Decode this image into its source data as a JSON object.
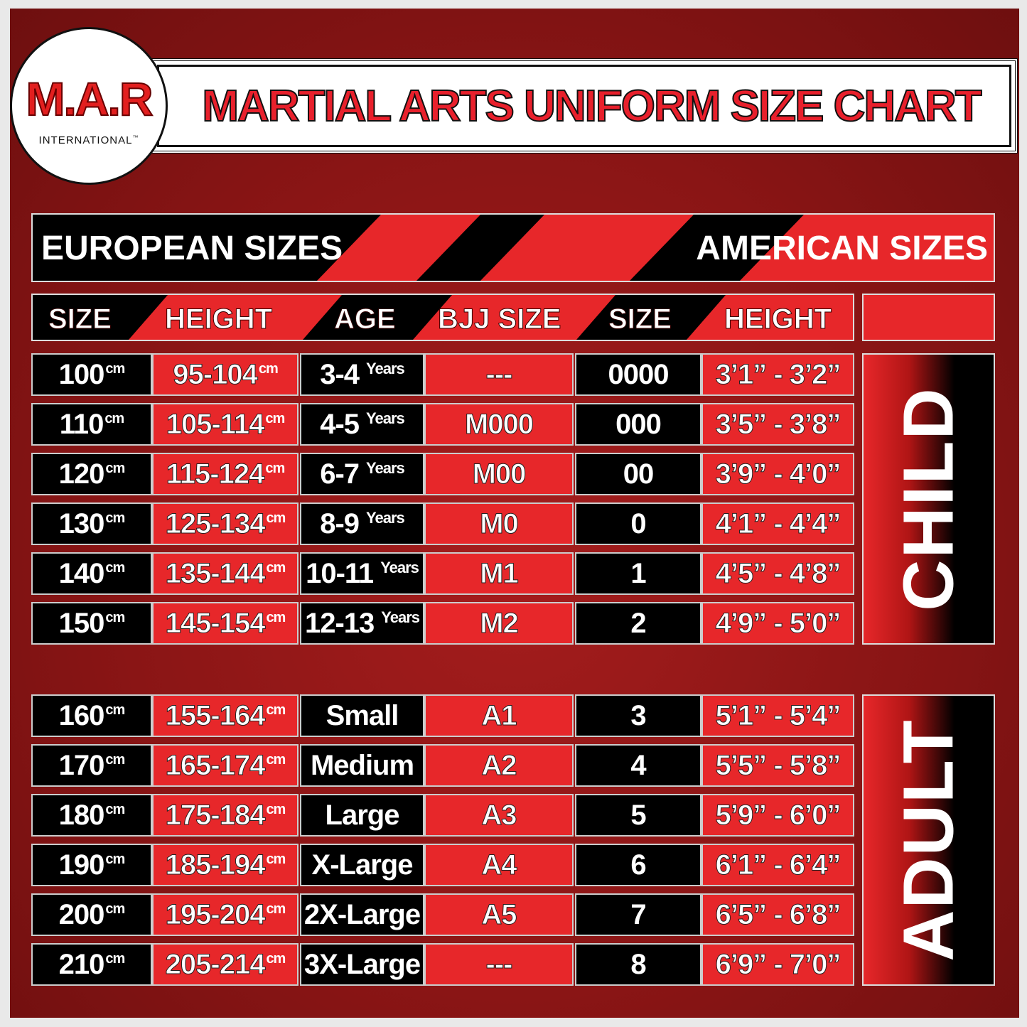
{
  "logo": {
    "brand": "M.A.R",
    "sub": "INTERNATIONAL",
    "tm": "™"
  },
  "title": "MARTIAL ARTS UNIFORM SIZE CHART",
  "banner": {
    "left": "EUROPEAN SIZES",
    "right": "AMERICAN SIZES"
  },
  "headers": [
    "SIZE",
    "HEIGHT",
    "AGE",
    "BJJ SIZE",
    "SIZE",
    "HEIGHT"
  ],
  "units": {
    "cm": "cm"
  },
  "colors": {
    "red": "#e7272a",
    "dark_red": "#8a1515",
    "black": "#000000",
    "white": "#ffffff"
  },
  "groups": [
    {
      "label": "CHILD",
      "rows": [
        {
          "eu_size": "100",
          "eu_height": "95-104",
          "age": "3-4",
          "age_suffix": "Years",
          "bjj": "---",
          "us_size": "0000",
          "us_height": "3’1” - 3’2”"
        },
        {
          "eu_size": "110",
          "eu_height": "105-114",
          "age": "4-5",
          "age_suffix": "Years",
          "bjj": "M000",
          "us_size": "000",
          "us_height": "3’5” - 3’8”"
        },
        {
          "eu_size": "120",
          "eu_height": "115-124",
          "age": "6-7",
          "age_suffix": "Years",
          "bjj": "M00",
          "us_size": "00",
          "us_height": "3’9” - 4’0”"
        },
        {
          "eu_size": "130",
          "eu_height": "125-134",
          "age": "8-9",
          "age_suffix": "Years",
          "bjj": "M0",
          "us_size": "0",
          "us_height": "4’1” - 4’4”"
        },
        {
          "eu_size": "140",
          "eu_height": "135-144",
          "age": "10-11",
          "age_suffix": "Years",
          "bjj": "M1",
          "us_size": "1",
          "us_height": "4’5” - 4’8”"
        },
        {
          "eu_size": "150",
          "eu_height": "145-154",
          "age": "12-13",
          "age_suffix": "Years",
          "bjj": "M2",
          "us_size": "2",
          "us_height": "4’9” - 5’0”"
        }
      ]
    },
    {
      "label": "ADULT",
      "rows": [
        {
          "eu_size": "160",
          "eu_height": "155-164",
          "age": "Small",
          "age_suffix": "",
          "bjj": "A1",
          "us_size": "3",
          "us_height": "5’1” - 5’4”"
        },
        {
          "eu_size": "170",
          "eu_height": "165-174",
          "age": "Medium",
          "age_suffix": "",
          "bjj": "A2",
          "us_size": "4",
          "us_height": "5’5” - 5’8”"
        },
        {
          "eu_size": "180",
          "eu_height": "175-184",
          "age": "Large",
          "age_suffix": "",
          "bjj": "A3",
          "us_size": "5",
          "us_height": "5’9” - 6’0”"
        },
        {
          "eu_size": "190",
          "eu_height": "185-194",
          "age": "X-Large",
          "age_suffix": "",
          "bjj": "A4",
          "us_size": "6",
          "us_height": "6’1” - 6’4”"
        },
        {
          "eu_size": "200",
          "eu_height": "195-204",
          "age": "2X-Large",
          "age_suffix": "",
          "bjj": "A5",
          "us_size": "7",
          "us_height": "6’5” - 6’8”"
        },
        {
          "eu_size": "210",
          "eu_height": "205-214",
          "age": "3X-Large",
          "age_suffix": "",
          "bjj": "---",
          "us_size": "8",
          "us_height": "6’9” - 7’0”"
        }
      ]
    }
  ]
}
